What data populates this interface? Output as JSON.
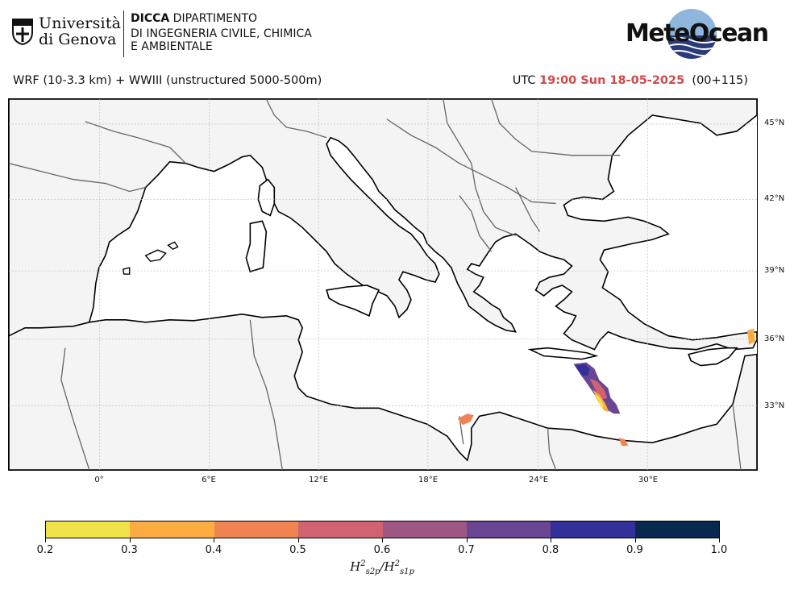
{
  "header": {
    "unige_line1": "Università",
    "unige_line2": "di Genova",
    "dicca_bold": "DICCA",
    "dicca_line1": " DIPARTIMENTO",
    "dicca_line2": "DI INGEGNERIA CIVILE, CHIMICA",
    "dicca_line3": "E AMBIENTALE",
    "meteo_logo": "MeteOcean"
  },
  "title": {
    "model": "WRF (10-3.3 km) + WWIII (unstructured 5000-500m)",
    "utc_prefix": "UTC ",
    "valid_time": "19:00 Sun 18-05-2025",
    "lead": "  (00+115)"
  },
  "map": {
    "lat_labels": [
      "45°N",
      "42°N",
      "39°N",
      "36°N",
      "33°N"
    ],
    "lon_labels": [
      "0°",
      "6°E",
      "12°E",
      "18°E",
      "24°E",
      "30°E"
    ],
    "colors": {
      "land": "#f4f4f4",
      "sea": "#ffffff",
      "coast": "#000000",
      "borders": "#666666",
      "grid": "#bbbbbb"
    }
  },
  "colorbar": {
    "ticks": [
      "0.2",
      "0.3",
      "0.4",
      "0.5",
      "0.6",
      "0.7",
      "0.8",
      "0.9",
      "1.0"
    ],
    "colors": [
      "#f2e24a",
      "#fcad42",
      "#f08352",
      "#cf6370",
      "#9e5685",
      "#6a4593",
      "#33309a",
      "#07294f"
    ],
    "label_base": "H",
    "label_sup": "2",
    "label_sub_num": "s2p",
    "label_sub_den": "s1p"
  }
}
